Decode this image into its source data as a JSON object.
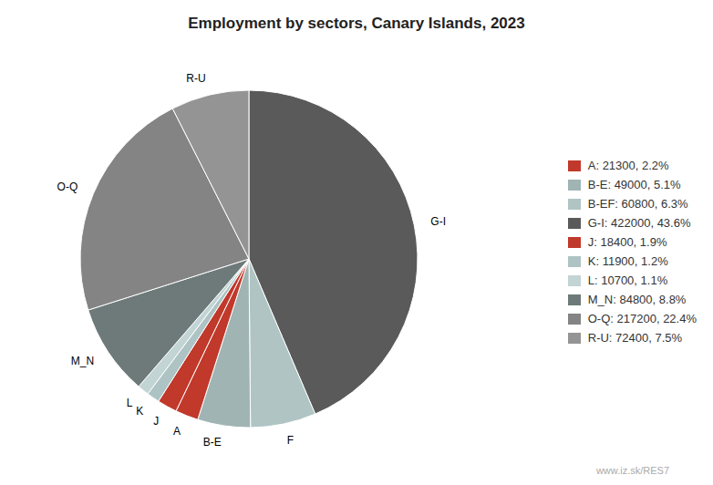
{
  "chart_data": {
    "type": "pie",
    "title": "Employment by sectors, Canary Islands, 2023",
    "categories": [
      "G-I",
      "F",
      "B-E",
      "A",
      "J",
      "K",
      "L",
      "M_N",
      "O-Q",
      "R-U"
    ],
    "values": [
      422000,
      60800,
      49000,
      21300,
      18400,
      11900,
      10700,
      84800,
      217200,
      72400
    ],
    "colors": [
      "#5a5a5a",
      "#b0c4c4",
      "#a0b4b4",
      "#c0392b",
      "#c0392b",
      "#aec4c4",
      "#c2d4d4",
      "#6e7a7a",
      "#848484",
      "#949494"
    ],
    "legend": "right",
    "legend_entries": [
      {
        "name": "A: 21300, 2.2%",
        "color": "#c0392b"
      },
      {
        "name": "B-E: 49000, 5.1%",
        "color": "#a0b4b4"
      },
      {
        "name": "B-EF: 60800, 6.3%",
        "color": "#b0c4c4"
      },
      {
        "name": "G-I: 422000, 43.6%",
        "color": "#5a5a5a"
      },
      {
        "name": "J: 18400, 1.9%",
        "color": "#c0392b"
      },
      {
        "name": "K: 11900, 1.2%",
        "color": "#aec4c4"
      },
      {
        "name": "L: 10700, 1.1%",
        "color": "#c2d4d4"
      },
      {
        "name": "M_N: 84800, 8.8%",
        "color": "#6e7a7a"
      },
      {
        "name": "O-Q: 217200, 22.4%",
        "color": "#848484"
      },
      {
        "name": "R-U: 72400, 7.5%",
        "color": "#949494"
      }
    ],
    "annotations": [
      {
        "text": "www.iz.sk/RES7"
      }
    ]
  }
}
